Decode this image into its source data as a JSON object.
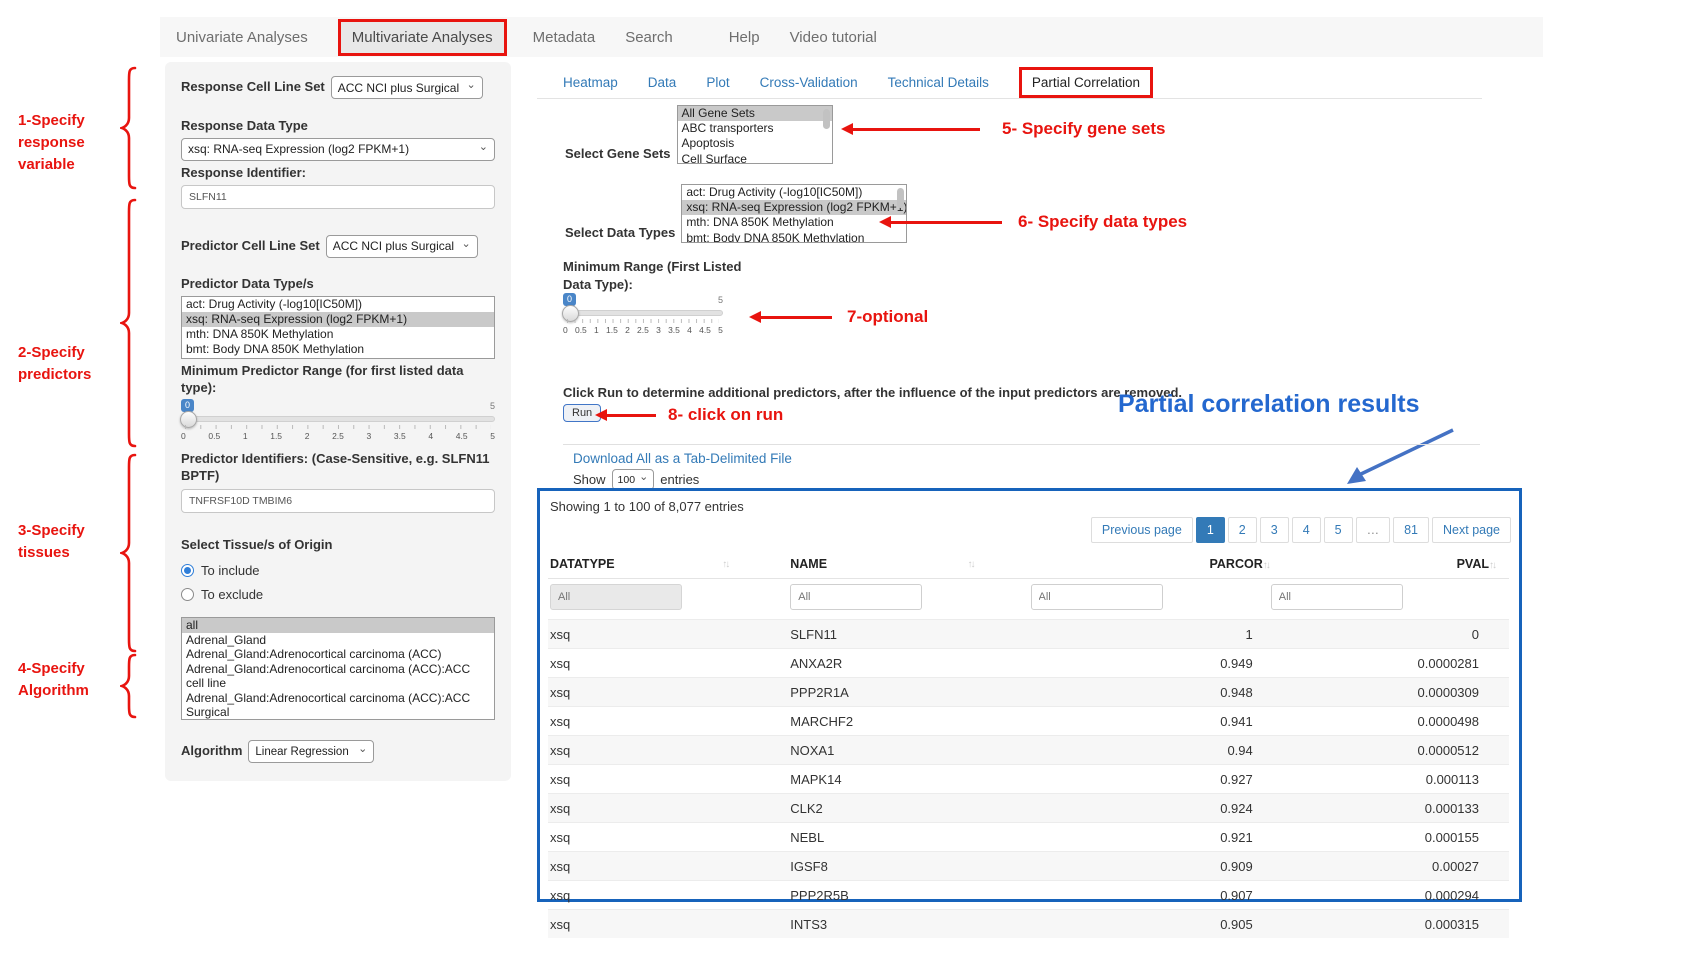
{
  "nav": {
    "items": [
      "Univariate Analyses",
      "Multivariate Analyses",
      "Metadata",
      "Search",
      "Help",
      "Video tutorial"
    ],
    "active_item": "Multivariate Analyses"
  },
  "annotations": {
    "step1": "1-Specify response variable",
    "step2": "2-Specify predictors",
    "step3": "3-Specify tissues",
    "step4": "4-Specify Algorithm",
    "step5": "5- Specify gene sets",
    "step6": "6- Specify data types",
    "step7": "7-optional",
    "step8": "8- click on run",
    "results_heading": "Partial correlation results",
    "accent_red": "#e8140f",
    "accent_blue": "#2468cf"
  },
  "panel": {
    "response_cell_line_set_label": "Response Cell Line Set",
    "response_cell_line_set_value": "ACC NCI plus Surgical",
    "response_data_type_label": "Response Data Type",
    "response_data_type_value": "xsq: RNA-seq Expression (log2 FPKM+1)",
    "response_identifier_label": "Response Identifier:",
    "response_identifier_value": "SLFN11",
    "predictor_cell_line_set_label": "Predictor Cell Line Set",
    "predictor_cell_line_set_value": "ACC NCI plus Surgical",
    "predictor_data_types_label": "Predictor Data Type/s",
    "predictor_data_types_options": [
      "act: Drug Activity (-log10[IC50M])",
      "xsq: RNA-seq Expression (log2 FPKM+1)",
      "mth: DNA 850K Methylation",
      "bmt: Body DNA 850K Methylation"
    ],
    "predictor_data_types_selected": "xsq: RNA-seq Expression (log2 FPKM+1)",
    "min_predictor_range_label": "Minimum Predictor Range (for first listed data type):",
    "predictor_identifiers_label": "Predictor Identifiers: (Case-Sensitive, e.g. SLFN11 BPTF)",
    "predictor_identifiers_value": "TNFRSF10D TMBIM6",
    "tissues_label": "Select Tissue/s of Origin",
    "tissues_include": "To include",
    "tissues_exclude": "To exclude",
    "tissues_options": [
      "all",
      "Adrenal_Gland",
      "Adrenal_Gland:Adrenocortical carcinoma (ACC)",
      "Adrenal_Gland:Adrenocortical carcinoma (ACC):ACC cell line",
      "Adrenal_Gland:Adrenocortical carcinoma (ACC):ACC Surgical"
    ],
    "tissues_selected": "all",
    "algorithm_label": "Algorithm",
    "algorithm_value": "Linear Regression"
  },
  "slider": {
    "value": "0",
    "max": "5",
    "ticks": [
      "0",
      "0.5",
      "1",
      "1.5",
      "2",
      "2.5",
      "3",
      "3.5",
      "4",
      "4.5",
      "5"
    ]
  },
  "tabs": {
    "items": [
      "Heatmap",
      "Data",
      "Plot",
      "Cross-Validation",
      "Technical Details",
      "Partial Correlation"
    ],
    "active_item": "Partial Correlation"
  },
  "gene_sets": {
    "label": "Select Gene Sets",
    "options": [
      "All Gene Sets",
      "ABC transporters",
      "Apoptosis",
      "Cell Surface"
    ],
    "selected": "All Gene Sets"
  },
  "data_types": {
    "label": "Select Data Types",
    "options": [
      "act: Drug Activity (-log10[IC50M])",
      "xsq: RNA-seq Expression (log2 FPKM+1)",
      "mth: DNA 850K Methylation",
      "bmt: Body DNA 850K Methylation"
    ],
    "selected": "xsq: RNA-seq Expression (log2 FPKM+1)"
  },
  "min_range": {
    "label": "Minimum Range (First Listed Data Type):"
  },
  "run_section": {
    "instruction": "Click Run to determine additional predictors, after the influence of the input predictors are removed.",
    "run_label": "Run"
  },
  "results": {
    "download_link": "Download All as a Tab-Delimited File",
    "show_label": "Show",
    "page_size": "100",
    "entries_label": "entries",
    "summary": "Showing 1 to 100 of 8,077 entries",
    "pagination": {
      "previous": "Previous page",
      "pages": [
        "1",
        "2",
        "3",
        "4",
        "5",
        "…",
        "81"
      ],
      "active_page": "1",
      "next": "Next page"
    },
    "table": {
      "columns": [
        "DATATYPE",
        "NAME",
        "PARCOR",
        "PVAL"
      ],
      "filter_placeholder": "All",
      "rows": [
        {
          "datatype": "xsq",
          "name": "SLFN11",
          "parcor": "1",
          "pval": "0"
        },
        {
          "datatype": "xsq",
          "name": "ANXA2R",
          "parcor": "0.949",
          "pval": "0.0000281"
        },
        {
          "datatype": "xsq",
          "name": "PPP2R1A",
          "parcor": "0.948",
          "pval": "0.0000309"
        },
        {
          "datatype": "xsq",
          "name": "MARCHF2",
          "parcor": "0.941",
          "pval": "0.0000498"
        },
        {
          "datatype": "xsq",
          "name": "NOXA1",
          "parcor": "0.94",
          "pval": "0.0000512"
        },
        {
          "datatype": "xsq",
          "name": "MAPK14",
          "parcor": "0.927",
          "pval": "0.000113"
        },
        {
          "datatype": "xsq",
          "name": "CLK2",
          "parcor": "0.924",
          "pval": "0.000133"
        },
        {
          "datatype": "xsq",
          "name": "NEBL",
          "parcor": "0.921",
          "pval": "0.000155"
        },
        {
          "datatype": "xsq",
          "name": "IGSF8",
          "parcor": "0.909",
          "pval": "0.00027"
        },
        {
          "datatype": "xsq",
          "name": "PPP2R5B",
          "parcor": "0.907",
          "pval": "0.000294"
        },
        {
          "datatype": "xsq",
          "name": "INTS3",
          "parcor": "0.905",
          "pval": "0.000315"
        }
      ]
    }
  },
  "icons": {
    "sort": "↑↓",
    "dropdown": "⌄"
  }
}
